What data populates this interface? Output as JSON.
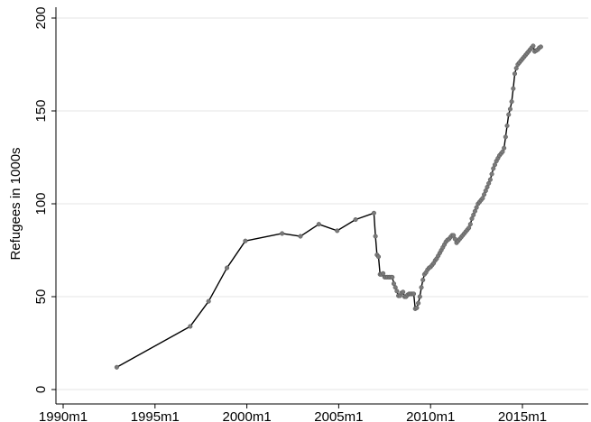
{
  "chart_data": {
    "type": "line",
    "title": "",
    "xlabel": "",
    "ylabel": "Refugees in 1000s",
    "xlim": [
      "1990m1",
      "2015m11"
    ],
    "ylim": [
      0,
      200
    ],
    "grid": true,
    "x_ticks": [
      "1990m1",
      "1995m1",
      "2000m1",
      "2005m1",
      "2010m1",
      "2015m1"
    ],
    "y_ticks": [
      0,
      50,
      100,
      150,
      200
    ],
    "series": [
      {
        "line_color": "#000000",
        "marker_color": "#7a7a7a",
        "points": [
          [
            "1992m12",
            12
          ],
          [
            "1996m12",
            34
          ],
          [
            "1997m12",
            47.5
          ],
          [
            "1998m12",
            65.5
          ],
          [
            "1999m12",
            80
          ],
          [
            "2001m12",
            84
          ],
          [
            "2002m12",
            82.5
          ],
          [
            "2003m12",
            89
          ],
          [
            "2004m12",
            85.5
          ],
          [
            "2005m12",
            91.5
          ],
          [
            "2006m12",
            95
          ],
          [
            "2007m1",
            82.5
          ],
          [
            "2007m2",
            72.5
          ],
          [
            "2007m3",
            71.5
          ],
          [
            "2007m4",
            62
          ],
          [
            "2007m5",
            62
          ],
          [
            "2007m6",
            62.5
          ],
          [
            "2007m7",
            60.5
          ],
          [
            "2007m8",
            60.5
          ],
          [
            "2007m9",
            60.5
          ],
          [
            "2007m10",
            60.5
          ],
          [
            "2007m11",
            60.5
          ],
          [
            "2007m12",
            60.5
          ],
          [
            "2008m1",
            57
          ],
          [
            "2008m2",
            55
          ],
          [
            "2008m3",
            53
          ],
          [
            "2008m4",
            50.5
          ],
          [
            "2008m5",
            50.5
          ],
          [
            "2008m6",
            52
          ],
          [
            "2008m7",
            52.5
          ],
          [
            "2008m8",
            50
          ],
          [
            "2008m9",
            50
          ],
          [
            "2008m10",
            51
          ],
          [
            "2008m11",
            51.5
          ],
          [
            "2008m12",
            51.5
          ],
          [
            "2009m1",
            51.5
          ],
          [
            "2009m2",
            51.5
          ],
          [
            "2009m3",
            43.5
          ],
          [
            "2009m4",
            44
          ],
          [
            "2009m5",
            46.5
          ],
          [
            "2009m6",
            50
          ],
          [
            "2009m7",
            55
          ],
          [
            "2009m8",
            59
          ],
          [
            "2009m9",
            62
          ],
          [
            "2009m10",
            63
          ],
          [
            "2009m11",
            64.5
          ],
          [
            "2009m12",
            65.5
          ],
          [
            "2010m1",
            66
          ],
          [
            "2010m2",
            67
          ],
          [
            "2010m3",
            68
          ],
          [
            "2010m4",
            69.5
          ],
          [
            "2010m5",
            70.5
          ],
          [
            "2010m6",
            72
          ],
          [
            "2010m7",
            73.5
          ],
          [
            "2010m8",
            75
          ],
          [
            "2010m9",
            76.5
          ],
          [
            "2010m10",
            78
          ],
          [
            "2010m11",
            79.5
          ],
          [
            "2010m12",
            80.5
          ],
          [
            "2011m1",
            81
          ],
          [
            "2011m2",
            82
          ],
          [
            "2011m3",
            83
          ],
          [
            "2011m4",
            83
          ],
          [
            "2011m5",
            81
          ],
          [
            "2011m6",
            79
          ],
          [
            "2011m7",
            80
          ],
          [
            "2011m8",
            81
          ],
          [
            "2011m9",
            82
          ],
          [
            "2011m10",
            83
          ],
          [
            "2011m11",
            84
          ],
          [
            "2011m12",
            85
          ],
          [
            "2012m1",
            86
          ],
          [
            "2012m2",
            87
          ],
          [
            "2012m3",
            89
          ],
          [
            "2012m4",
            92
          ],
          [
            "2012m5",
            94
          ],
          [
            "2012m6",
            96
          ],
          [
            "2012m7",
            98
          ],
          [
            "2012m8",
            100
          ],
          [
            "2012m9",
            101
          ],
          [
            "2012m10",
            102
          ],
          [
            "2012m11",
            103
          ],
          [
            "2012m12",
            105
          ],
          [
            "2013m1",
            107
          ],
          [
            "2013m2",
            109
          ],
          [
            "2013m3",
            111
          ],
          [
            "2013m4",
            113
          ],
          [
            "2013m5",
            116
          ],
          [
            "2013m6",
            119
          ],
          [
            "2013m7",
            121
          ],
          [
            "2013m8",
            123
          ],
          [
            "2013m9",
            124.5
          ],
          [
            "2013m10",
            126
          ],
          [
            "2013m11",
            127
          ],
          [
            "2013m12",
            128
          ],
          [
            "2014m1",
            130
          ],
          [
            "2014m2",
            136
          ],
          [
            "2014m3",
            142
          ],
          [
            "2014m4",
            148
          ],
          [
            "2014m5",
            151
          ],
          [
            "2014m6",
            155
          ],
          [
            "2014m7",
            162
          ],
          [
            "2014m8",
            170
          ],
          [
            "2014m9",
            173
          ],
          [
            "2014m10",
            175
          ],
          [
            "2014m11",
            176
          ],
          [
            "2014m12",
            177
          ],
          [
            "2015m1",
            178
          ],
          [
            "2015m2",
            179
          ],
          [
            "2015m3",
            180
          ],
          [
            "2015m4",
            181
          ],
          [
            "2015m5",
            182
          ],
          [
            "2015m6",
            183
          ],
          [
            "2015m7",
            184
          ],
          [
            "2015m8",
            185
          ],
          [
            "2015m9",
            182
          ],
          [
            "2015m10",
            182.5
          ],
          [
            "2015m11",
            183
          ],
          [
            "2015m12",
            184
          ],
          [
            "2016m1",
            184.5
          ]
        ]
      }
    ]
  }
}
